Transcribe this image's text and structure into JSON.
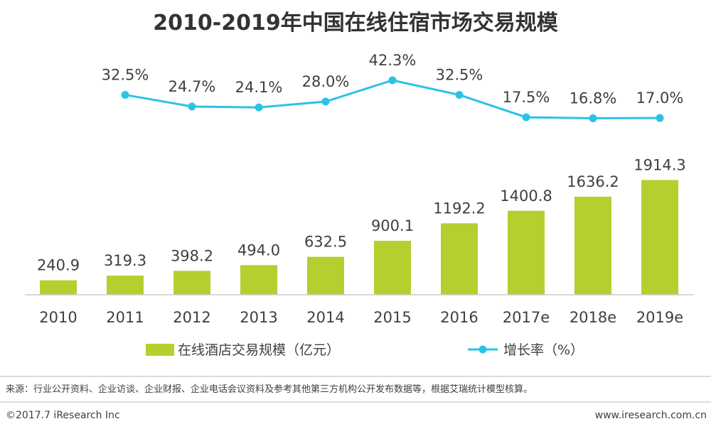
{
  "chart_data": {
    "type": "bar+line",
    "title": "2010-2019年中国在线住宿市场交易规模",
    "categories": [
      "2010",
      "2011",
      "2012",
      "2013",
      "2014",
      "2015",
      "2016",
      "2017e",
      "2018e",
      "2019e"
    ],
    "series": [
      {
        "name": "在线酒店交易规模（亿元）",
        "type": "bar",
        "values": [
          240.9,
          319.3,
          398.2,
          494.0,
          632.5,
          900.1,
          1192.2,
          1400.8,
          1636.2,
          1914.3
        ],
        "labels": [
          "240.9",
          "319.3",
          "398.2",
          "494.0",
          "632.5",
          "900.1",
          "1192.2",
          "1400.8",
          "1636.2",
          "1914.3"
        ]
      },
      {
        "name": "增长率（%）",
        "type": "line",
        "values": [
          null,
          32.5,
          24.7,
          24.1,
          28.0,
          42.3,
          32.5,
          17.5,
          16.8,
          17.0
        ],
        "labels": [
          "",
          "32.5%",
          "24.7%",
          "24.1%",
          "28.0%",
          "42.3%",
          "32.5%",
          "17.5%",
          "16.8%",
          "17.0%"
        ]
      }
    ],
    "colors": {
      "bar": "#b5cf2e",
      "line": "#29c3e6",
      "axis": "#cccccc",
      "text": "#404040",
      "title": "#333333"
    },
    "legend_position": "bottom"
  },
  "source_text": "来源：行业公开资料、企业访谈、企业财报、企业电话会议资料及参考其他第三方机构公开发布数据等，根据艾瑞统计模型核算。",
  "footer": {
    "copyright": "©2017.7 iResearch Inc",
    "website": "www.iresearch.com.cn"
  }
}
